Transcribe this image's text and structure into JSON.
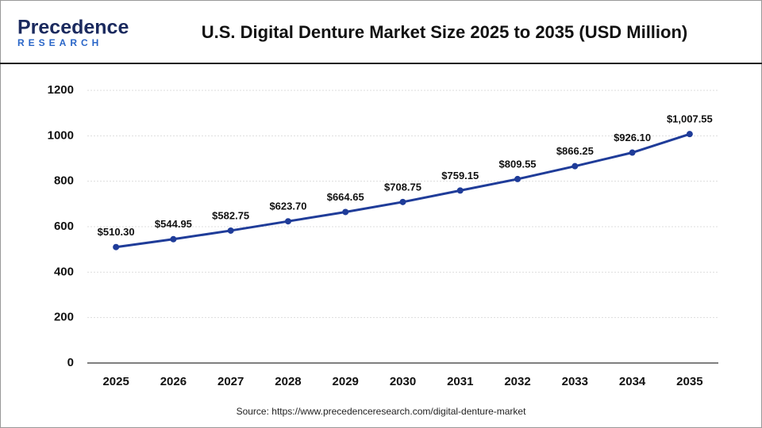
{
  "logo": {
    "name": "Precedence",
    "tagline": "RESEARCH"
  },
  "chart_data": {
    "type": "line",
    "title": "U.S. Digital Denture Market Size 2025 to 2035 (USD Million)",
    "categories": [
      "2025",
      "2026",
      "2027",
      "2028",
      "2029",
      "2030",
      "2031",
      "2032",
      "2033",
      "2034",
      "2035"
    ],
    "values": [
      510.3,
      544.95,
      582.75,
      623.7,
      664.65,
      708.75,
      759.15,
      809.55,
      866.25,
      926.1,
      1007.55
    ],
    "value_labels": [
      "$510.30",
      "$544.95",
      "$582.75",
      "$623.70",
      "$664.65",
      "$708.75",
      "$759.15",
      "$809.55",
      "$866.25",
      "$926.10",
      "$1,007.55"
    ],
    "color": "#1f3c99",
    "ylim": [
      0,
      1200
    ],
    "yticks": [
      0,
      200,
      400,
      600,
      800,
      1000,
      1200
    ],
    "grid": true,
    "source": "Source: https://www.precedenceresearch.com/digital-denture-market"
  }
}
